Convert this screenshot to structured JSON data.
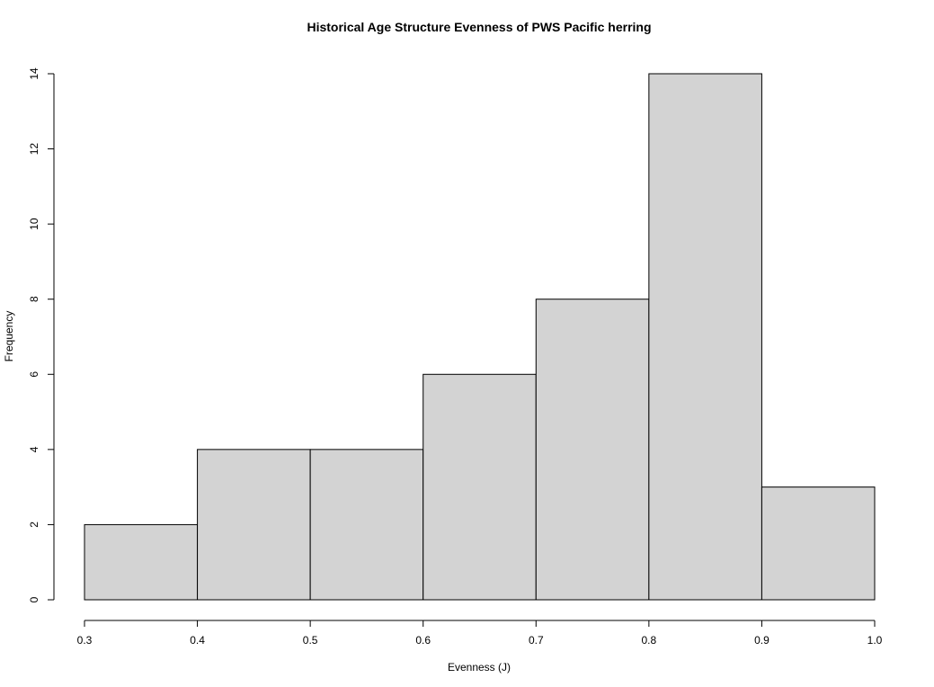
{
  "chart_data": {
    "type": "bar",
    "subtype": "histogram",
    "title": "Historical Age Structure Evenness of PWS Pacific herring",
    "xlabel": "Evenness (J)",
    "ylabel": "Frequency",
    "bins": [
      {
        "start": 0.3,
        "end": 0.4,
        "count": 2
      },
      {
        "start": 0.4,
        "end": 0.5,
        "count": 4
      },
      {
        "start": 0.5,
        "end": 0.6,
        "count": 4
      },
      {
        "start": 0.6,
        "end": 0.7,
        "count": 6
      },
      {
        "start": 0.7,
        "end": 0.8,
        "count": 8
      },
      {
        "start": 0.8,
        "end": 0.9,
        "count": 14
      },
      {
        "start": 0.9,
        "end": 1.0,
        "count": 3
      }
    ],
    "xlim": [
      0.3,
      1.0
    ],
    "ylim": [
      0,
      14
    ],
    "x_ticks": [
      "0.3",
      "0.4",
      "0.5",
      "0.6",
      "0.7",
      "0.8",
      "0.9",
      "1.0"
    ],
    "y_ticks": [
      "0",
      "2",
      "4",
      "6",
      "8",
      "10",
      "12",
      "14"
    ],
    "bar_color": "#d3d3d3",
    "grid": false,
    "legend": false
  }
}
